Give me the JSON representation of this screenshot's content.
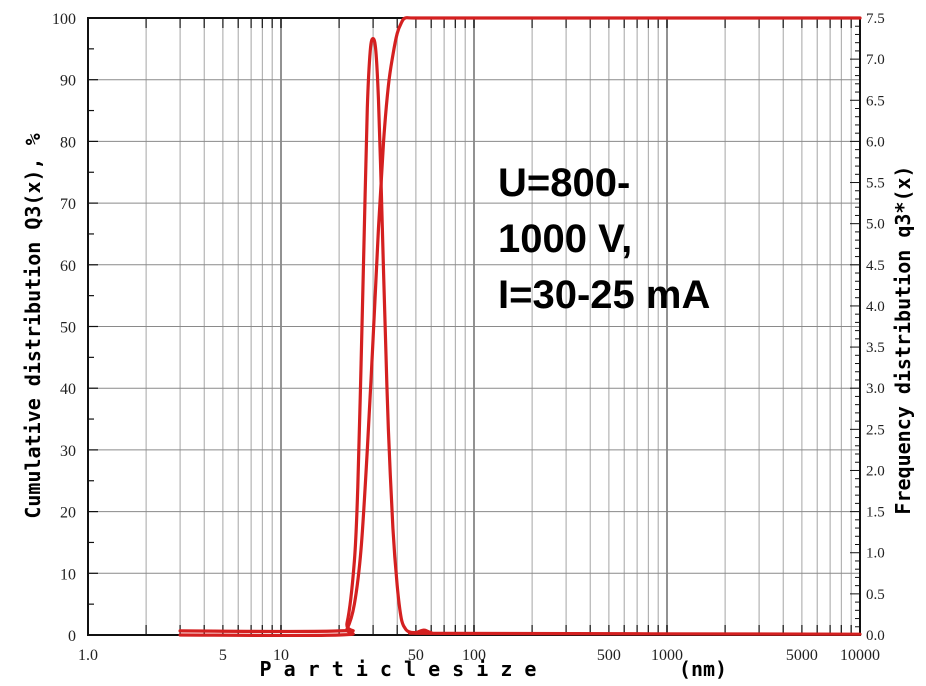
{
  "chart_data": {
    "type": "line",
    "title": "",
    "xlabel": "P a r t i c l e   s i z e",
    "xlabel_unit": "(nm)",
    "ylabel_left": "Cumulative distribution Q3(x),  %",
    "ylabel_right": "Frequency distribution  q3*(x)",
    "x_scale": "log",
    "xlim": [
      1,
      10000
    ],
    "ylim_left": [
      0,
      100
    ],
    "ylim_right": [
      0,
      7.5
    ],
    "grid": true,
    "x_tick_labels": [
      "1.0",
      "5",
      "10",
      "50",
      "100",
      "500",
      "1000",
      "5000",
      "10000"
    ],
    "y_left_tick_labels": [
      "0",
      "10",
      "20",
      "30",
      "40",
      "50",
      "60",
      "70",
      "80",
      "90",
      "100"
    ],
    "y_right_tick_labels": [
      "0.0",
      "0.5",
      "1.0",
      "1.5",
      "2.0",
      "2.5",
      "3.0",
      "3.5",
      "4.0",
      "4.5",
      "5.0",
      "5.5",
      "6.0",
      "6.5",
      "7.0",
      "7.5"
    ],
    "annotation": [
      "U=800-",
      "1000 V,",
      "I=30-25 mA"
    ],
    "line_color": "#d42020",
    "series": [
      {
        "axis": "left",
        "x": [
          3,
          20,
          22,
          24,
          26,
          28,
          30,
          32,
          34,
          36,
          38,
          40,
          42,
          44,
          50,
          100,
          1000,
          10000
        ],
        "y": [
          0,
          0,
          1,
          5,
          14,
          30,
          48,
          66,
          80,
          89,
          94,
          97.5,
          99.2,
          100,
          100,
          100,
          100,
          100
        ]
      },
      {
        "axis": "right",
        "x": [
          3,
          20,
          22,
          24,
          25,
          26,
          27,
          28,
          29,
          30,
          31,
          32,
          33,
          34,
          35,
          36,
          38,
          40,
          42,
          44,
          46,
          50,
          55,
          60,
          70,
          10000
        ],
        "y": [
          0.05,
          0.05,
          0.15,
          0.9,
          1.8,
          3.3,
          4.9,
          6.4,
          7.1,
          7.25,
          7.1,
          6.5,
          5.5,
          4.4,
          3.4,
          2.5,
          1.3,
          0.6,
          0.2,
          0.08,
          0.04,
          0.03,
          0.06,
          0.03,
          0.02,
          0.01
        ]
      }
    ]
  }
}
